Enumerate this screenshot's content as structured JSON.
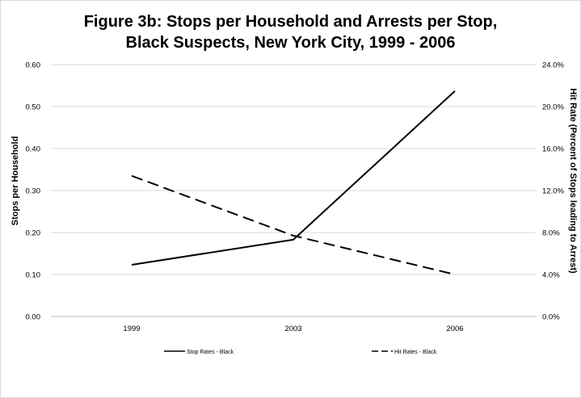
{
  "title_line1": "Figure 3b: Stops per Household and Arrests per Stop,",
  "title_line2": "Black Suspects, New York City, 1999 - 2006",
  "chart_data": {
    "type": "line",
    "categories": [
      "1999",
      "2003",
      "2006"
    ],
    "series": [
      {
        "name": "Stop Rates - Black",
        "axis": "left",
        "style": "solid",
        "values": [
          0.123,
          0.183,
          0.537
        ]
      },
      {
        "name": "Hit Rates - Black",
        "axis": "right",
        "style": "dashed",
        "values": [
          0.134,
          0.077,
          0.04
        ]
      }
    ],
    "ylabel": "Stops per Household",
    "y2label": "Hit Rate (Percent of Stops leading to Arrest)",
    "ylim": [
      0,
      0.6
    ],
    "y2lim": [
      0,
      0.24
    ],
    "yticks": [
      "0.00",
      "0.10",
      "0.20",
      "0.30",
      "0.40",
      "0.50",
      "0.60"
    ],
    "y2ticks": [
      "0.0%",
      "4.0%",
      "8.0%",
      "12.0%",
      "16.0%",
      "20.0%",
      "24.0%"
    ],
    "grid": true,
    "legend_position": "bottom"
  }
}
